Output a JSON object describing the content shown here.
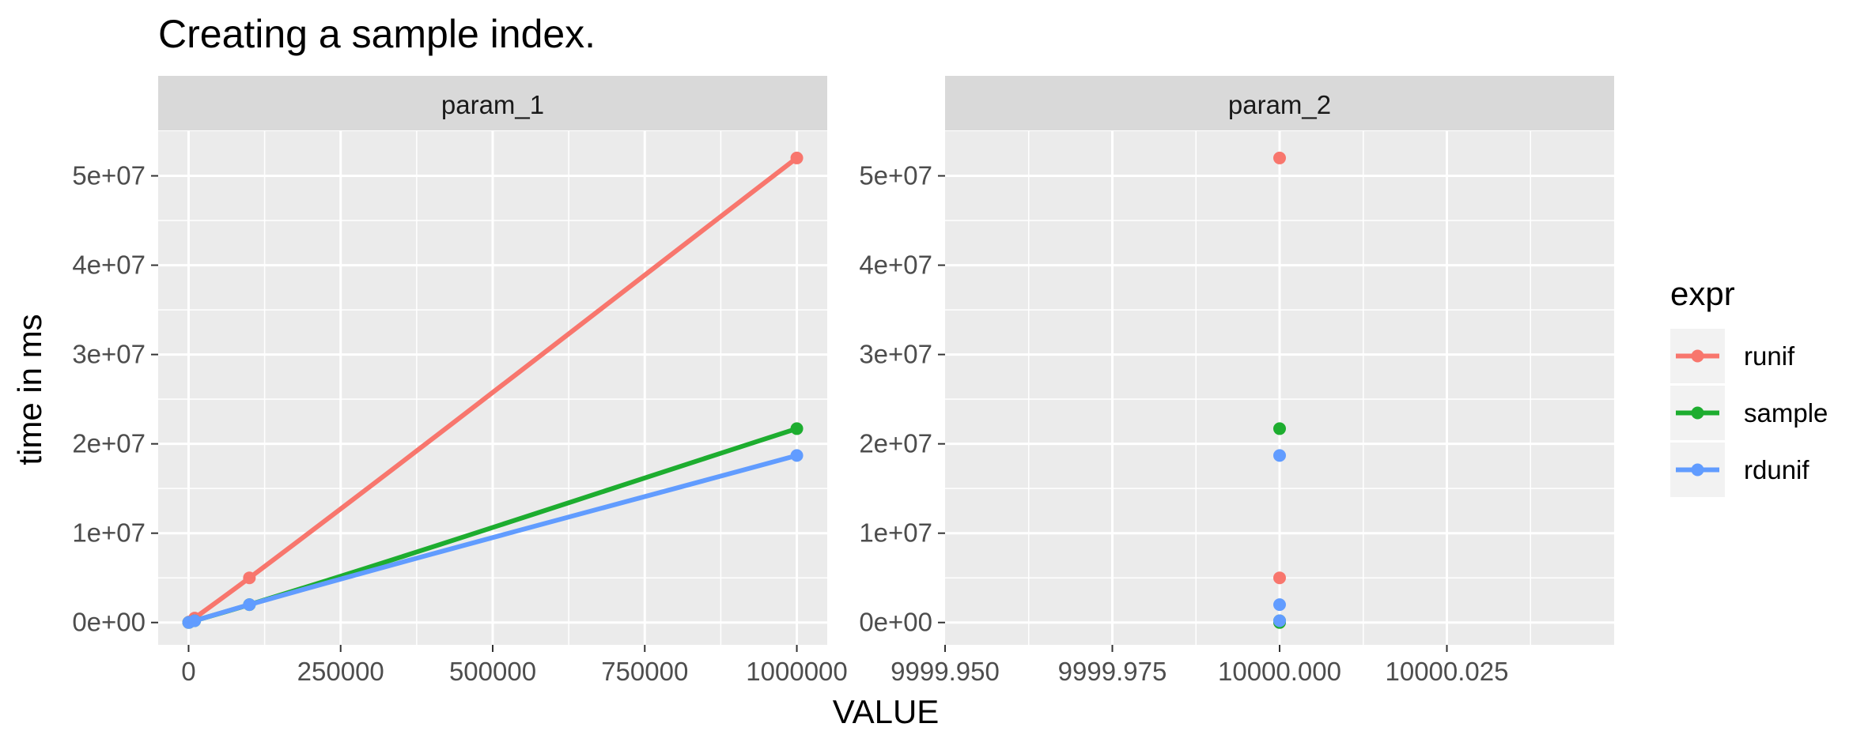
{
  "chart_data": {
    "type": "line",
    "title": "Creating a sample index.",
    "xlabel": "VALUE",
    "ylabel": "time in ms",
    "grid": true,
    "legend": {
      "title": "expr",
      "placement": "right",
      "entries": [
        "runif",
        "sample",
        "rdunif"
      ]
    },
    "colors": {
      "runif": "#F8766D",
      "sample": "#1DAD2F",
      "rdunif": "#619CFF",
      "panel_bg": "#EBEBEB",
      "strip_bg": "#D9D9D9",
      "grid": "#FFFFFF"
    },
    "y_ticks": [
      "0e+00",
      "1e+07",
      "2e+07",
      "3e+07",
      "4e+07",
      "5e+07"
    ],
    "y_tick_values": [
      0,
      10000000,
      20000000,
      30000000,
      40000000,
      50000000
    ],
    "ylim": [
      -2500000,
      55000000
    ],
    "panels": [
      {
        "strip": "param_1",
        "xlim": [
          -50000,
          1050000
        ],
        "x_ticks": [
          "0",
          "250000",
          "500000",
          "750000",
          "1000000"
        ],
        "x_tick_values": [
          0,
          250000,
          500000,
          750000,
          1000000
        ],
        "x_minor": [
          125000,
          375000,
          625000,
          875000
        ],
        "smooth": true,
        "series": [
          {
            "name": "runif",
            "x": [
              100,
              1000,
              10000,
              100000,
              1000000
            ],
            "y": [
              10000,
              60000,
              500000,
              5000000,
              52000000
            ]
          },
          {
            "name": "sample",
            "x": [
              100,
              1000,
              10000,
              100000,
              1000000
            ],
            "y": [
              5000,
              20000,
              200000,
              2000000,
              21700000
            ]
          },
          {
            "name": "rdunif",
            "x": [
              100,
              1000,
              10000,
              100000,
              1000000
            ],
            "y": [
              5000,
              20000,
              200000,
              2000000,
              18700000
            ]
          }
        ]
      },
      {
        "strip": "param_2",
        "xlim": [
          9999.95,
          10000.05
        ],
        "x_ticks": [
          "9999.950",
          "9999.975",
          "10000.000",
          "10000.025"
        ],
        "x_tick_values": [
          9999.95,
          9999.975,
          10000.0,
          10000.025
        ],
        "x_minor": [
          9999.9625,
          9999.9875,
          10000.0125,
          10000.0375
        ],
        "smooth": false,
        "series": [
          {
            "name": "runif",
            "x": [
              10000,
              10000,
              10000
            ],
            "y": [
              52000000,
              5000000,
              10000
            ]
          },
          {
            "name": "sample",
            "x": [
              10000,
              10000,
              10000
            ],
            "y": [
              21700000,
              200000,
              5000
            ]
          },
          {
            "name": "rdunif",
            "x": [
              10000,
              10000,
              10000
            ],
            "y": [
              18700000,
              2000000,
              200000
            ]
          }
        ]
      }
    ]
  }
}
